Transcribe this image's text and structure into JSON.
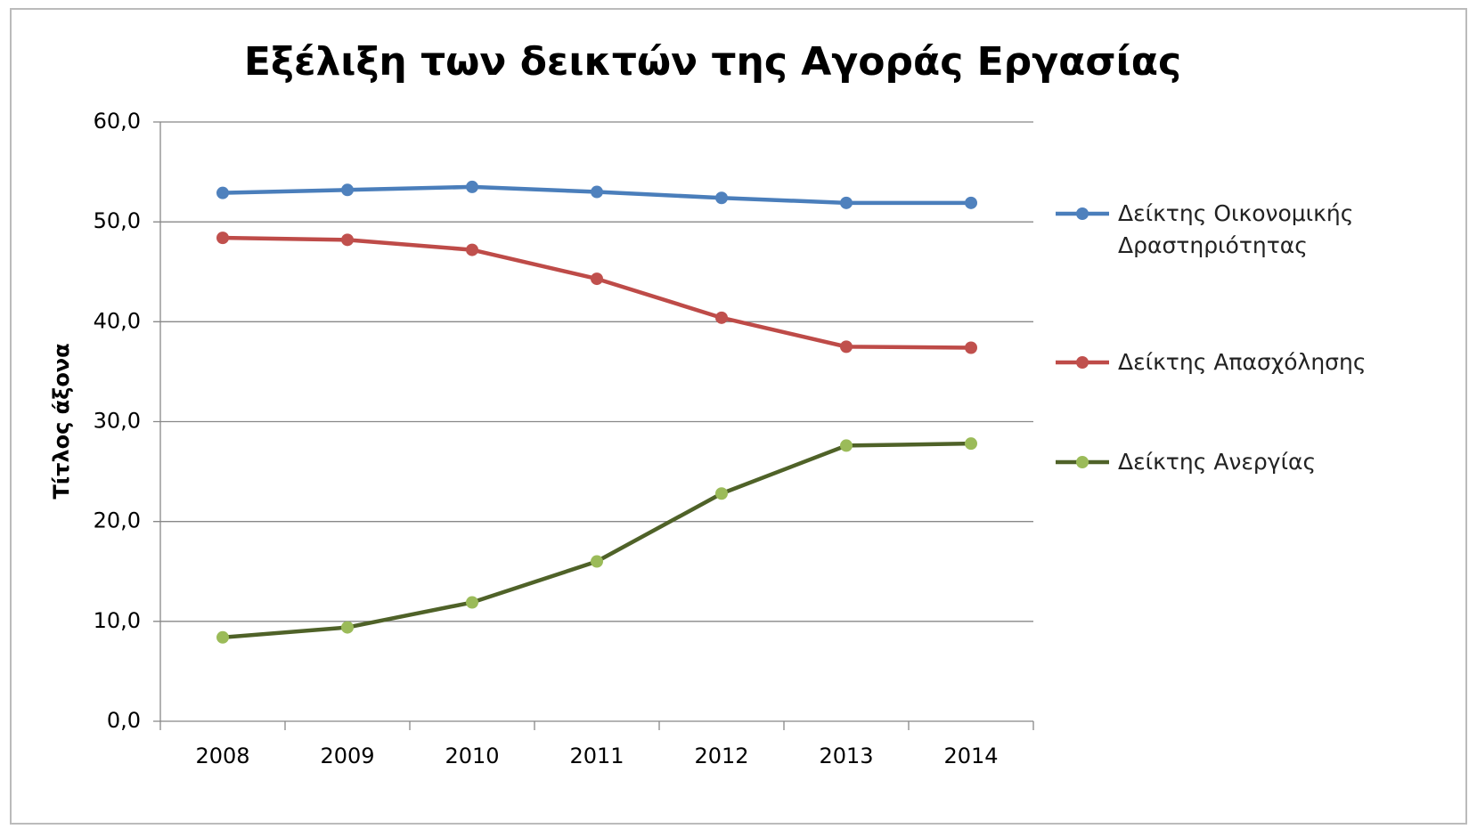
{
  "chart_data": {
    "type": "line",
    "title": "Εξέλιξη των δεικτών της Αγοράς Εργασίας",
    "y_label": "Τίτλος άξονα",
    "categories": [
      "2008",
      "2009",
      "2010",
      "2011",
      "2012",
      "2013",
      "2014"
    ],
    "series": [
      {
        "name": "Δείκτης Οικονομικής Δραστηριότητας",
        "color": "#4a7ebb",
        "marker_color": "#4f81bd",
        "values": [
          52.9,
          53.2,
          53.5,
          53.0,
          52.4,
          51.9,
          51.9
        ]
      },
      {
        "name": "Δείκτης Απασχόλησης",
        "color": "#be4b48",
        "marker_color": "#c0504d",
        "values": [
          48.4,
          48.2,
          47.2,
          44.3,
          40.4,
          37.5,
          37.4
        ]
      },
      {
        "name": "Δείκτης Ανεργίας",
        "color": "#4f6228",
        "marker_color": "#9bbb59",
        "values": [
          8.4,
          9.4,
          11.9,
          16.0,
          22.8,
          27.6,
          27.8
        ]
      }
    ],
    "ylim": [
      0,
      60
    ],
    "yticks": [
      {
        "value": 0,
        "label": "0,0"
      },
      {
        "value": 10,
        "label": "10,0"
      },
      {
        "value": 20,
        "label": "20,0"
      },
      {
        "value": 30,
        "label": "30,0"
      },
      {
        "value": 40,
        "label": "40,0"
      },
      {
        "value": 50,
        "label": "50,0"
      },
      {
        "value": 60,
        "label": "60,0"
      }
    ],
    "grid": true,
    "legend": "right"
  }
}
